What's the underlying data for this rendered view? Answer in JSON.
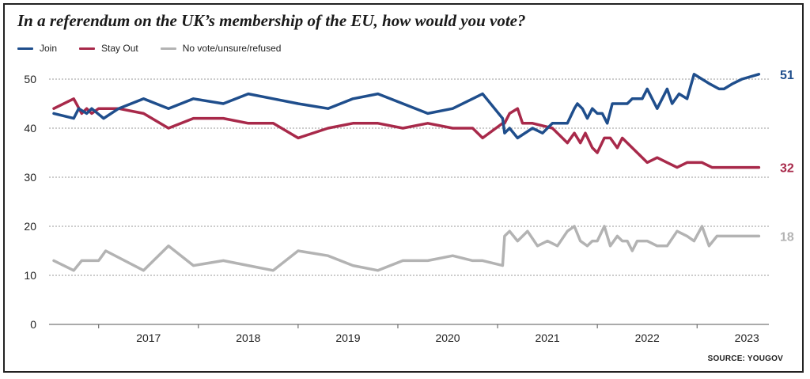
{
  "chart_data": {
    "type": "line",
    "title": "In a referendum on the UK’s membership of the EU, how would you vote?",
    "xlabel": "",
    "ylabel": "",
    "ylim": [
      0,
      50
    ],
    "yticks": [
      0,
      10,
      20,
      30,
      40,
      50
    ],
    "xticks": [
      "2017",
      "2018",
      "2019",
      "2020",
      "2021",
      "2022",
      "2023"
    ],
    "xlim": [
      2016.55,
      2023.72
    ],
    "grid": true,
    "legend_position": "top-left",
    "source": "SOURCE: YOUGOV",
    "series": [
      {
        "name": "Join",
        "color": "#1f4e8c",
        "end_label": "51",
        "x": [
          2016.55,
          2016.75,
          2016.8,
          2016.88,
          2016.93,
          2017.05,
          2017.2,
          2017.45,
          2017.7,
          2017.95,
          2018.25,
          2018.5,
          2018.75,
          2019.0,
          2019.3,
          2019.55,
          2019.8,
          2020.05,
          2020.3,
          2020.55,
          2020.75,
          2020.85,
          2021.05,
          2021.07,
          2021.12,
          2021.2,
          2021.35,
          2021.45,
          2021.55,
          2021.6,
          2021.7,
          2021.77,
          2021.8,
          2021.85,
          2021.9,
          2021.95,
          2022.0,
          2022.05,
          2022.1,
          2022.15,
          2022.2,
          2022.3,
          2022.35,
          2022.45,
          2022.5,
          2022.6,
          2022.65,
          2022.7,
          2022.75,
          2022.82,
          2022.9,
          2022.97,
          2023.05,
          2023.13,
          2023.22,
          2023.27,
          2023.35,
          2023.45,
          2023.62
        ],
        "values": [
          43,
          42,
          44,
          43,
          44,
          42,
          44,
          46,
          44,
          46,
          45,
          47,
          46,
          45,
          44,
          46,
          47,
          45,
          43,
          44,
          46,
          47,
          42,
          39,
          40,
          38,
          40,
          39,
          41,
          41,
          41,
          44,
          45,
          44,
          42,
          44,
          43,
          43,
          41,
          45,
          45,
          45,
          46,
          46,
          48,
          44,
          46,
          48,
          45,
          47,
          46,
          51,
          50,
          49,
          48,
          48,
          49,
          50,
          51
        ]
      },
      {
        "name": "Stay Out",
        "color": "#a8294a",
        "end_label": "32",
        "x": [
          2016.55,
          2016.75,
          2016.83,
          2016.88,
          2016.93,
          2017.0,
          2017.2,
          2017.45,
          2017.7,
          2017.95,
          2018.25,
          2018.5,
          2018.75,
          2019.0,
          2019.3,
          2019.55,
          2019.8,
          2020.05,
          2020.3,
          2020.55,
          2020.75,
          2020.85,
          2021.05,
          2021.07,
          2021.12,
          2021.2,
          2021.25,
          2021.35,
          2021.55,
          2021.7,
          2021.77,
          2021.83,
          2021.88,
          2021.95,
          2022.0,
          2022.07,
          2022.13,
          2022.2,
          2022.25,
          2022.3,
          2022.4,
          2022.5,
          2022.6,
          2022.7,
          2022.8,
          2022.9,
          2022.97,
          2023.05,
          2023.15,
          2023.25,
          2023.35,
          2023.45,
          2023.62
        ],
        "values": [
          44,
          46,
          43,
          44,
          43,
          44,
          44,
          43,
          40,
          42,
          42,
          41,
          41,
          38,
          40,
          41,
          41,
          40,
          41,
          40,
          40,
          38,
          41,
          41,
          43,
          44,
          41,
          41,
          40,
          37,
          39,
          37,
          39,
          36,
          35,
          38,
          38,
          36,
          38,
          37,
          35,
          33,
          34,
          33,
          32,
          33,
          33,
          33,
          32,
          32,
          32,
          32,
          32
        ]
      },
      {
        "name": "No vote/unsure/refused",
        "color": "#b3b3b3",
        "end_label": "18",
        "x": [
          2016.55,
          2016.75,
          2016.83,
          2017.0,
          2017.07,
          2017.45,
          2017.7,
          2017.95,
          2018.25,
          2018.5,
          2018.75,
          2019.0,
          2019.3,
          2019.55,
          2019.8,
          2020.05,
          2020.3,
          2020.55,
          2020.75,
          2020.85,
          2021.05,
          2021.07,
          2021.12,
          2021.2,
          2021.3,
          2021.4,
          2021.5,
          2021.6,
          2021.7,
          2021.77,
          2021.83,
          2021.9,
          2021.95,
          2022.0,
          2022.07,
          2022.13,
          2022.2,
          2022.25,
          2022.3,
          2022.35,
          2022.4,
          2022.5,
          2022.6,
          2022.7,
          2022.8,
          2022.9,
          2022.97,
          2023.05,
          2023.12,
          2023.2,
          2023.27,
          2023.35,
          2023.45,
          2023.62
        ],
        "values": [
          13,
          11,
          13,
          13,
          15,
          11,
          16,
          12,
          13,
          12,
          11,
          15,
          14,
          12,
          11,
          13,
          13,
          14,
          13,
          13,
          12,
          18,
          19,
          17,
          19,
          16,
          17,
          16,
          19,
          20,
          17,
          16,
          17,
          17,
          20,
          16,
          18,
          17,
          17,
          15,
          17,
          17,
          16,
          16,
          19,
          18,
          17,
          20,
          16,
          18,
          18,
          18,
          18,
          18
        ]
      }
    ]
  }
}
